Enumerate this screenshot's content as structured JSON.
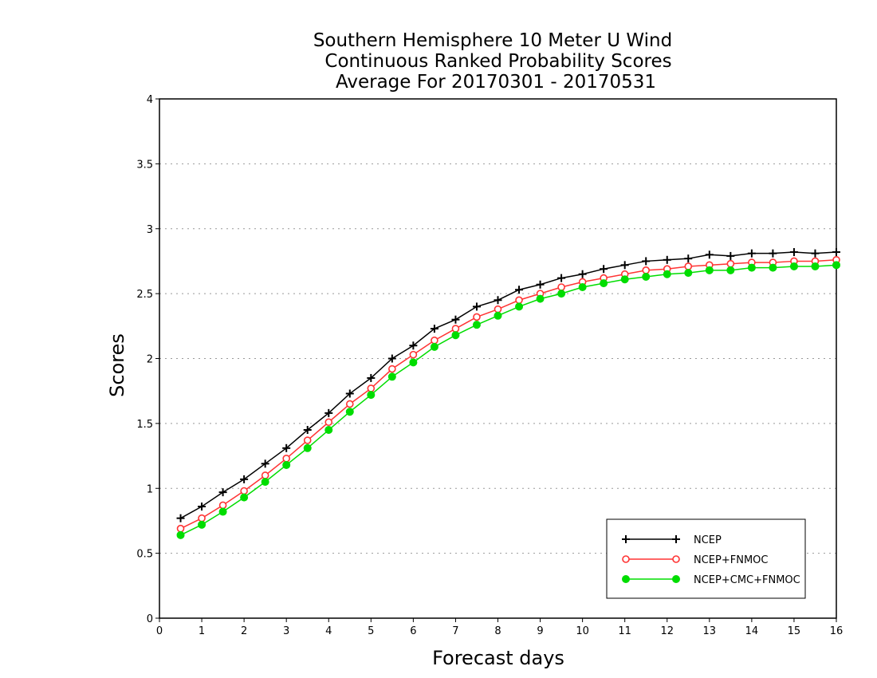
{
  "chart_data": {
    "type": "line",
    "title": [
      "Southern Hemisphere 10 Meter U Wind",
      "Continuous Ranked Probability Scores",
      "Average For 20170301 - 20170531"
    ],
    "xlabel": "Forecast days",
    "ylabel": "Scores",
    "xlim": [
      0,
      16
    ],
    "ylim": [
      0,
      4
    ],
    "x_ticks": [
      0,
      1,
      2,
      3,
      4,
      5,
      6,
      7,
      8,
      9,
      10,
      11,
      12,
      13,
      14,
      15,
      16
    ],
    "y_ticks": [
      0,
      0.5,
      1,
      1.5,
      2,
      2.5,
      3,
      3.5,
      4
    ],
    "y_grid": true,
    "legend_position": "bottom-right",
    "x": [
      0.5,
      1,
      1.5,
      2,
      2.5,
      3,
      3.5,
      4,
      4.5,
      5,
      5.5,
      6,
      6.5,
      7,
      7.5,
      8,
      8.5,
      9,
      9.5,
      10,
      10.5,
      11,
      11.5,
      12,
      12.5,
      13,
      13.5,
      14,
      14.5,
      15,
      15.5,
      16
    ],
    "series": [
      {
        "name": "NCEP",
        "color": "#000000",
        "marker": "plus",
        "values": [
          0.77,
          0.86,
          0.97,
          1.07,
          1.19,
          1.31,
          1.45,
          1.58,
          1.73,
          1.85,
          2.0,
          2.1,
          2.23,
          2.3,
          2.4,
          2.45,
          2.53,
          2.57,
          2.62,
          2.65,
          2.69,
          2.72,
          2.75,
          2.76,
          2.77,
          2.8,
          2.79,
          2.81,
          2.81,
          2.82,
          2.81,
          2.82
        ]
      },
      {
        "name": "NCEP+FNMOC",
        "color": "#ff3333",
        "marker": "open-circle",
        "values": [
          0.69,
          0.77,
          0.87,
          0.98,
          1.1,
          1.23,
          1.37,
          1.51,
          1.65,
          1.77,
          1.92,
          2.03,
          2.14,
          2.23,
          2.32,
          2.38,
          2.45,
          2.5,
          2.55,
          2.59,
          2.62,
          2.65,
          2.68,
          2.69,
          2.71,
          2.72,
          2.73,
          2.74,
          2.74,
          2.75,
          2.75,
          2.76
        ]
      },
      {
        "name": "NCEP+CMC+FNMOC",
        "color": "#00dd00",
        "marker": "filled-circle",
        "values": [
          0.64,
          0.72,
          0.82,
          0.93,
          1.05,
          1.18,
          1.31,
          1.45,
          1.59,
          1.72,
          1.86,
          1.97,
          2.09,
          2.18,
          2.26,
          2.33,
          2.4,
          2.46,
          2.5,
          2.55,
          2.58,
          2.61,
          2.63,
          2.65,
          2.66,
          2.68,
          2.68,
          2.7,
          2.7,
          2.71,
          2.71,
          2.72
        ]
      }
    ]
  }
}
